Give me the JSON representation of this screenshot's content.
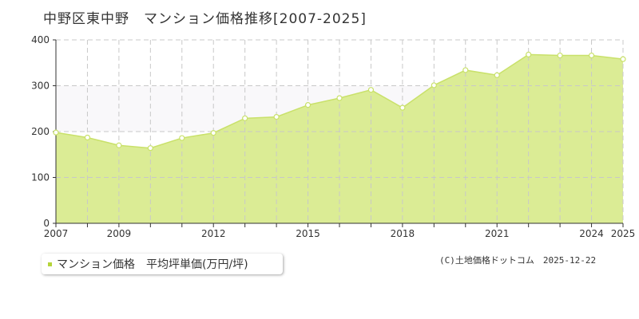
{
  "title": "中野区東中野　マンション価格推移[2007-2025]",
  "legend": {
    "label": "マンション価格　平均坪単価(万円/坪)"
  },
  "copyright": "(C)土地価格ドットコム　2025-12-22",
  "chart_data": {
    "type": "area",
    "x": [
      2007,
      2008,
      2009,
      2010,
      2011,
      2012,
      2013,
      2014,
      2015,
      2016,
      2017,
      2018,
      2019,
      2020,
      2021,
      2022,
      2023,
      2024,
      2025
    ],
    "series": [
      {
        "name": "マンション価格　平均坪単価(万円/坪)",
        "values": [
          198,
          187,
          170,
          164,
          186,
          197,
          229,
          232,
          258,
          273,
          291,
          252,
          301,
          334,
          323,
          368,
          366,
          366,
          358
        ]
      }
    ],
    "x_tick_labels": [
      "2007",
      "2009",
      "2012",
      "2015",
      "2018",
      "2021",
      "2024",
      "2025"
    ],
    "y_ticks": [
      0,
      100,
      200,
      300,
      400
    ],
    "ylim": [
      0,
      400
    ],
    "xlim": [
      2007,
      2025
    ],
    "grid": true,
    "colors": {
      "fill": "#dbec95",
      "line": "#c9e16a",
      "marker_fill": "#ffffff",
      "band": "#f9f8fa"
    }
  }
}
